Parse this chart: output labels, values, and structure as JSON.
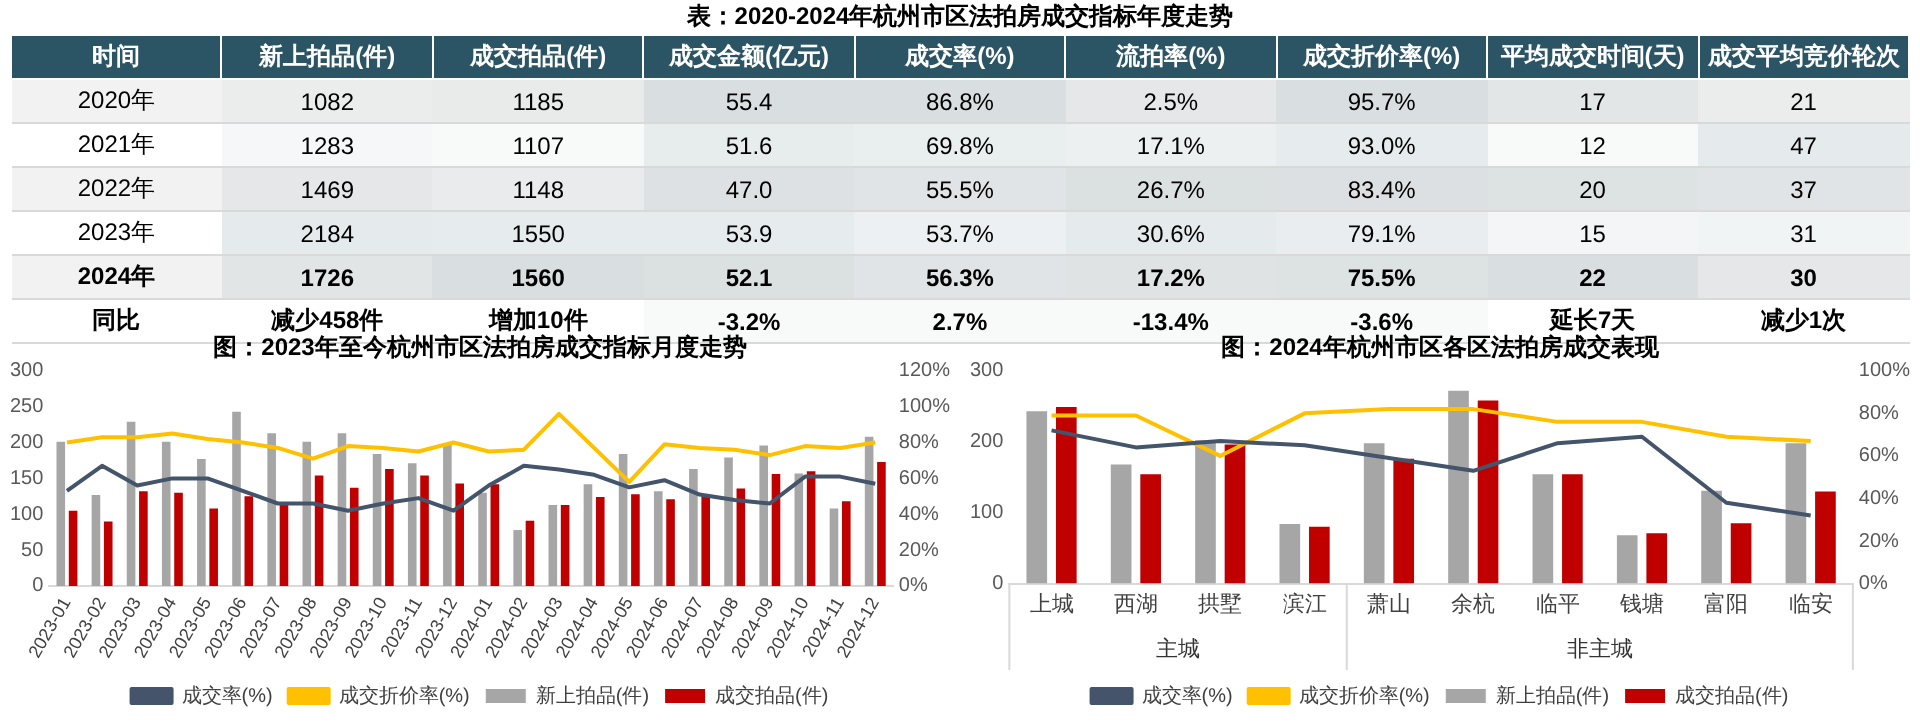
{
  "chart_data": [
    {
      "type": "heatmap",
      "title": "表：2020-2024年杭州市区法拍房成交指标年度走势",
      "ylabel": "时间",
      "categories": [
        "新上拍品(件)",
        "成交拍品(件)",
        "成交金额(亿元)",
        "成交率(%)",
        "流拍率(%)",
        "成交折价率(%)",
        "平均成交时间(天)",
        "成交平均竞价轮次"
      ],
      "y_categories": [
        "2020年",
        "2021年",
        "2022年",
        "2023年",
        "2024年",
        "同比"
      ],
      "cells": [
        [
          1082,
          1185,
          55.4,
          86.8,
          2.5,
          95.7,
          17,
          21
        ],
        [
          1283,
          1107,
          51.6,
          69.8,
          17.1,
          93.0,
          12,
          47
        ],
        [
          1469,
          1148,
          47.0,
          55.5,
          26.7,
          83.4,
          20,
          37
        ],
        [
          2184,
          1550,
          53.9,
          53.7,
          30.6,
          79.1,
          15,
          31
        ],
        [
          1726,
          1560,
          52.1,
          56.3,
          17.2,
          75.5,
          22,
          30
        ],
        [
          null,
          null,
          -3.2,
          2.7,
          -13.4,
          -3.6,
          null,
          null
        ]
      ],
      "cell_labels": [
        [
          "1082",
          "1185",
          "55.4",
          "86.8%",
          "2.5%",
          "95.7%",
          "17",
          "21"
        ],
        [
          "1283",
          "1107",
          "51.6",
          "69.8%",
          "17.1%",
          "93.0%",
          "12",
          "47"
        ],
        [
          "1469",
          "1148",
          "47.0",
          "55.5%",
          "26.7%",
          "83.4%",
          "20",
          "37"
        ],
        [
          "2184",
          "1550",
          "53.9",
          "53.7%",
          "30.6%",
          "79.1%",
          "15",
          "31"
        ],
        [
          "1726",
          "1560",
          "52.1",
          "56.3%",
          "17.2%",
          "75.5%",
          "22",
          "30"
        ],
        [
          "减少458件",
          "增加10件",
          "-3.2%",
          "2.7%",
          "-13.4%",
          "-3.6%",
          "延长7天",
          "减少1次"
        ]
      ]
    },
    {
      "type": "bar",
      "title": "图：2023年至今杭州市区法拍房成交指标月度走势",
      "categories": [
        "2023-01",
        "2023-02",
        "2023-03",
        "2023-04",
        "2023-05",
        "2023-06",
        "2023-07",
        "2023-08",
        "2023-09",
        "2023-10",
        "2023-11",
        "2023-12",
        "2024-01",
        "2024-02",
        "2024-03",
        "2024-04",
        "2024-05",
        "2024-06",
        "2024-07",
        "2024-08",
        "2024-09",
        "2024-10",
        "2024-11",
        "2024-12"
      ],
      "series": [
        {
          "name": "新上拍品(件)",
          "color": "#a6a6a6",
          "values": [
            201,
            127,
            229,
            201,
            177,
            243,
            213,
            201,
            213,
            184,
            171,
            199,
            130,
            78,
            113,
            142,
            184,
            132,
            163,
            179,
            196,
            157,
            108,
            208
          ]
        },
        {
          "name": "成交拍品(件)",
          "color": "#c00000",
          "values": [
            105,
            90,
            132,
            130,
            108,
            125,
            114,
            154,
            137,
            163,
            154,
            143,
            142,
            91,
            113,
            124,
            128,
            121,
            125,
            136,
            156,
            160,
            118,
            173
          ]
        },
        {
          "name": "成交率(%)",
          "color": "#44546a",
          "type": "line",
          "axis": "y2",
          "values": [
            53,
            67,
            56,
            60,
            60,
            53,
            46,
            46,
            42,
            46,
            49,
            42,
            56,
            67,
            65,
            62,
            55,
            59,
            51,
            48,
            46,
            61,
            61,
            57
          ]
        },
        {
          "name": "成交折价率(%)",
          "color": "#ffc000",
          "type": "line",
          "axis": "y2",
          "values": [
            80,
            83,
            83,
            85,
            82,
            80,
            77,
            71,
            78,
            77,
            75,
            80,
            75,
            76,
            96,
            77,
            58,
            79,
            77,
            76,
            73,
            78,
            77,
            80
          ]
        }
      ],
      "ylim": [
        0,
        300
      ],
      "yticks": [
        0,
        50,
        100,
        150,
        200,
        250,
        300
      ],
      "y2lim": [
        0,
        120
      ],
      "y2ticks": [
        {
          "value": 0,
          "label": "0%"
        },
        {
          "value": 20,
          "label": "20%"
        },
        {
          "value": 40,
          "label": "40%"
        },
        {
          "value": 60,
          "label": "60%"
        },
        {
          "value": 80,
          "label": "80%"
        },
        {
          "value": 100,
          "label": "100%"
        },
        {
          "value": 120,
          "label": "120%"
        }
      ],
      "legend": "bottom",
      "marker": "none"
    },
    {
      "type": "bar",
      "title": "图：2024年杭州市区各区法拍房成交表现",
      "categories": [
        "上城",
        "西湖",
        "拱墅",
        "滨江",
        "萧山",
        "余杭",
        "临平",
        "钱塘",
        "富阳",
        "临安"
      ],
      "series": [
        {
          "name": "新上拍品(件)",
          "color": "#a6a6a6",
          "values": [
            243,
            168,
            202,
            84,
            198,
            272,
            154,
            68,
            131,
            198
          ]
        },
        {
          "name": "成交拍品(件)",
          "color": "#c00000",
          "values": [
            249,
            154,
            196,
            80,
            176,
            258,
            154,
            71,
            85,
            130
          ]
        },
        {
          "name": "成交率(%)",
          "color": "#44546a",
          "type": "line",
          "axis": "y2",
          "values": [
            72,
            64,
            67,
            65,
            59,
            53,
            66,
            69,
            38,
            32
          ]
        },
        {
          "name": "成交折价率(%)",
          "color": "#ffc000",
          "type": "line",
          "axis": "y2",
          "values": [
            79,
            79,
            60,
            80,
            82,
            82,
            76,
            76,
            69,
            67
          ]
        }
      ],
      "ylim": [
        0,
        300
      ],
      "yticks": [
        0,
        100,
        200,
        300
      ],
      "y2lim": [
        0,
        100
      ],
      "y2ticks": [
        {
          "value": 0,
          "label": "0%"
        },
        {
          "value": 20,
          "label": "20%"
        },
        {
          "value": 40,
          "label": "40%"
        },
        {
          "value": 60,
          "label": "60%"
        },
        {
          "value": 80,
          "label": "80%"
        },
        {
          "value": 100,
          "label": "100%"
        }
      ],
      "annotations": [
        "主城",
        "非主城"
      ],
      "legend": "bottom",
      "marker": "none"
    }
  ]
}
